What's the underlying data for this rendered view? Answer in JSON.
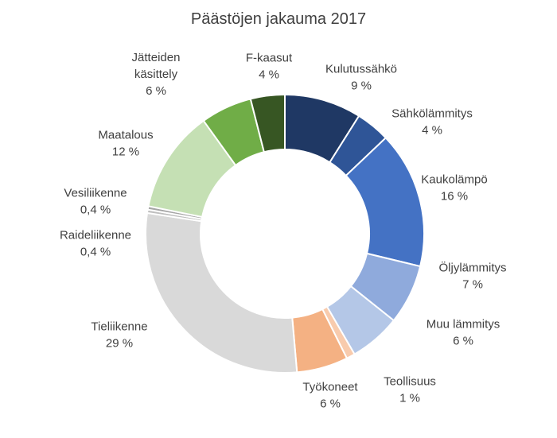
{
  "chart_data": {
    "type": "pie",
    "variant": "donut",
    "title": "Päästöjen jakauma 2017",
    "legend": "none",
    "slices": [
      {
        "label": "Kulutussähkö",
        "value": 9,
        "value_label": "9 %",
        "color": "#1f3864"
      },
      {
        "label": "Sähkölämmitys",
        "value": 4,
        "value_label": "4 %",
        "color": "#2f5597"
      },
      {
        "label": "Kaukolämpö",
        "value": 16,
        "value_label": "16 %",
        "color": "#4472c4"
      },
      {
        "label": "Öljylämmitys",
        "value": 7,
        "value_label": "7 %",
        "color": "#8faadc"
      },
      {
        "label": "Muu lämmitys",
        "value": 6,
        "value_label": "6 %",
        "color": "#b4c7e7"
      },
      {
        "label": "Teollisuus",
        "value": 1,
        "value_label": "1 %",
        "color": "#f8cbad"
      },
      {
        "label": "Työkoneet",
        "value": 6,
        "value_label": "6 %",
        "color": "#f4b183"
      },
      {
        "label": "Tieliikenne",
        "value": 29,
        "value_label": "29 %",
        "color": "#d9d9d9"
      },
      {
        "label": "Raideliikenne",
        "value": 0.4,
        "value_label": "0,4 %",
        "color": "#bfbfbf"
      },
      {
        "label": "Vesiliikenne",
        "value": 0.4,
        "value_label": "0,4 %",
        "color": "#a6a6a6"
      },
      {
        "label": "Maatalous",
        "value": 12,
        "value_label": "12 %",
        "color": "#c5e0b4"
      },
      {
        "label": "Jätteiden käsittely",
        "value": 6,
        "value_label": "6 %",
        "color": "#70ad47"
      },
      {
        "label": "F-kaasut",
        "value": 4,
        "value_label": "4 %",
        "color": "#375623"
      }
    ]
  }
}
